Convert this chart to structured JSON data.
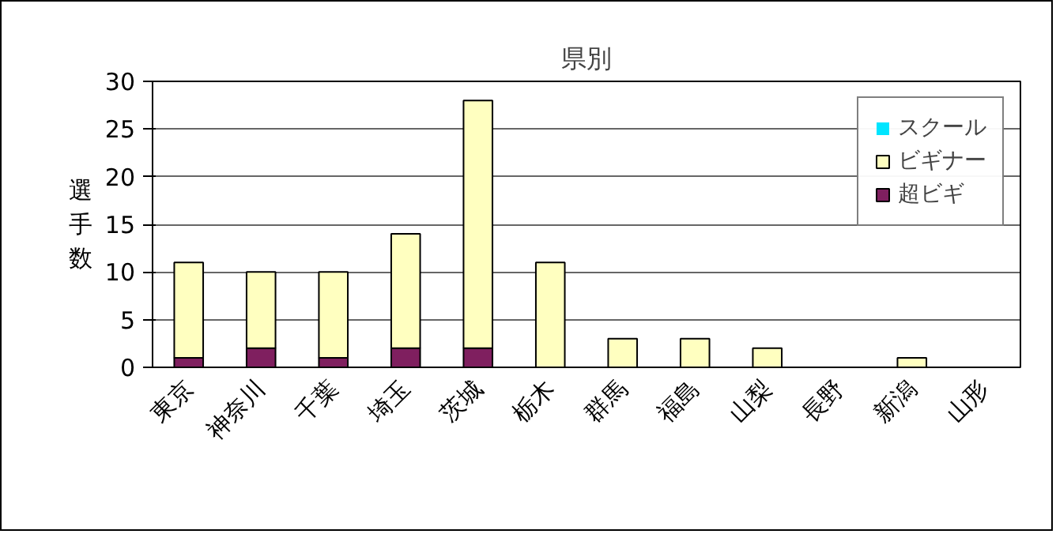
{
  "chart_data": {
    "type": "bar",
    "stacked": true,
    "title": "県別",
    "ylabel": "選手数",
    "categories": [
      "東京",
      "神奈川",
      "千葉",
      "埼玉",
      "茨城",
      "栃木",
      "群馬",
      "福島",
      "山梨",
      "長野",
      "新潟",
      "山形"
    ],
    "series": [
      {
        "name": "超ビギ",
        "color": "#7f1f5f",
        "values": [
          1,
          2,
          1,
          2,
          2,
          0,
          0,
          0,
          0,
          0,
          0,
          0
        ]
      },
      {
        "name": "ビギナー",
        "color": "#ffffc0",
        "values": [
          10,
          8,
          9,
          12,
          26,
          11,
          3,
          3,
          2,
          0,
          1,
          0
        ]
      },
      {
        "name": "スクール",
        "color": "#00e5ff",
        "values": [
          0,
          0,
          0,
          0,
          0,
          0,
          0,
          0,
          0,
          0,
          0,
          0
        ]
      }
    ],
    "ylim": [
      0,
      30
    ],
    "yticks": [
      0,
      5,
      10,
      15,
      20,
      25,
      30
    ],
    "grid": "y",
    "legend": "top right"
  }
}
